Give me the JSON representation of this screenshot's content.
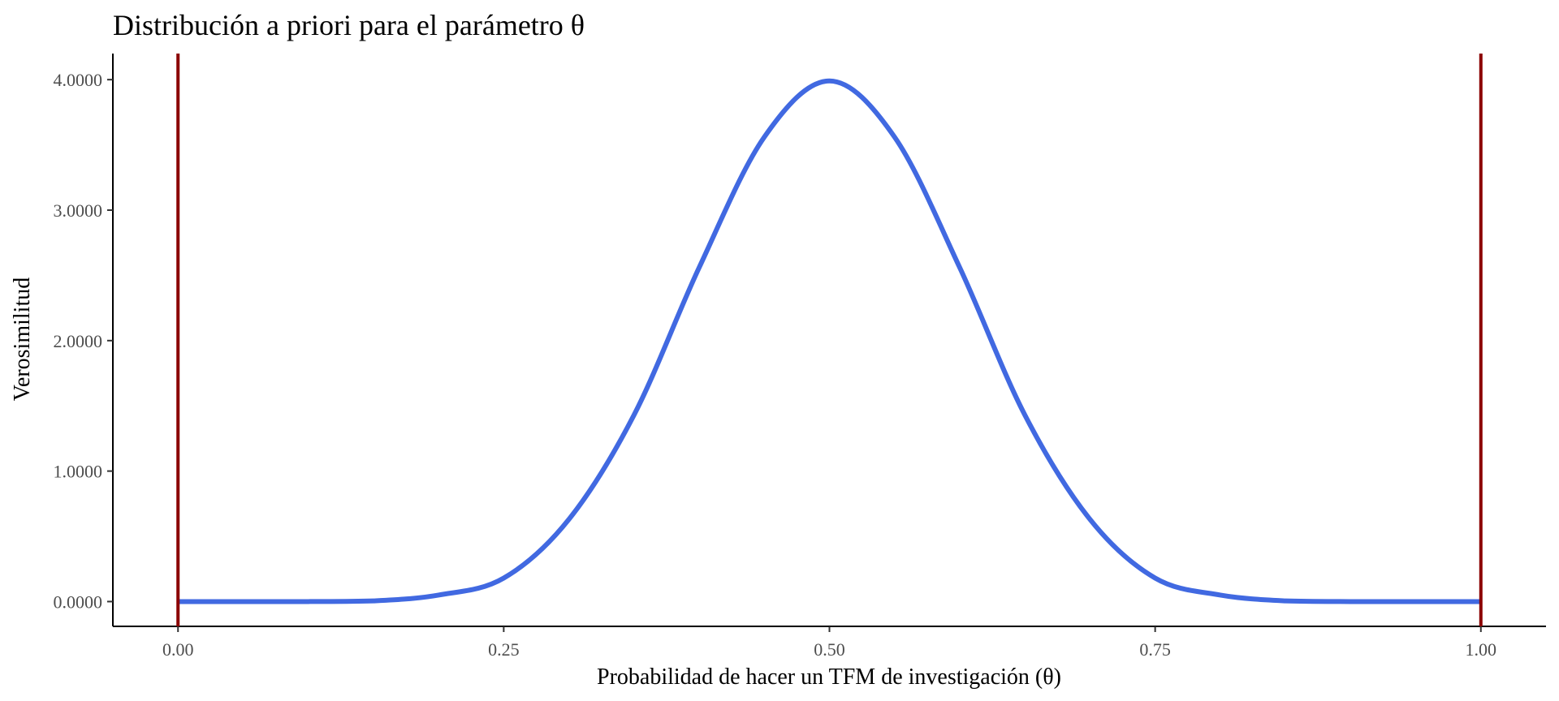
{
  "chart_data": {
    "type": "line",
    "title": "Distribución a priori para el parámetro θ",
    "xlabel": "Probabilidad de hacer un TFM de investigación (θ)",
    "ylabel": "Verosimilitud",
    "xlim": [
      -0.05,
      1.05
    ],
    "ylim": [
      -0.19,
      4.2
    ],
    "x_ticks": [
      0.0,
      0.25,
      0.5,
      0.75,
      1.0
    ],
    "x_tick_labels": [
      "0.00",
      "0.25",
      "0.50",
      "0.75",
      "1.00"
    ],
    "y_ticks": [
      0,
      1,
      2,
      3,
      4
    ],
    "y_tick_labels": [
      "0.0000",
      "1.0000",
      "2.0000",
      "3.0000",
      "4.0000"
    ],
    "grid": false,
    "series": [
      {
        "color": "#4169E1",
        "distribution": "Beta(12, 12)",
        "x": [
          0.0,
          0.05,
          0.1,
          0.15,
          0.2,
          0.25,
          0.3,
          0.35,
          0.4,
          0.45,
          0.5,
          0.55,
          0.6,
          0.65,
          0.7,
          0.75,
          0.8,
          0.85,
          0.9,
          0.95,
          1.0
        ],
        "y": [
          0.0,
          0.0,
          0.0,
          0.005,
          0.05,
          0.18,
          0.63,
          1.43,
          2.56,
          3.56,
          3.99,
          3.56,
          2.56,
          1.43,
          0.63,
          0.18,
          0.05,
          0.005,
          0.0,
          0.0,
          0.0
        ]
      }
    ],
    "vlines": [
      {
        "x": 0.0,
        "color": "#8B0000"
      },
      {
        "x": 1.0,
        "color": "#8B0000"
      }
    ]
  }
}
